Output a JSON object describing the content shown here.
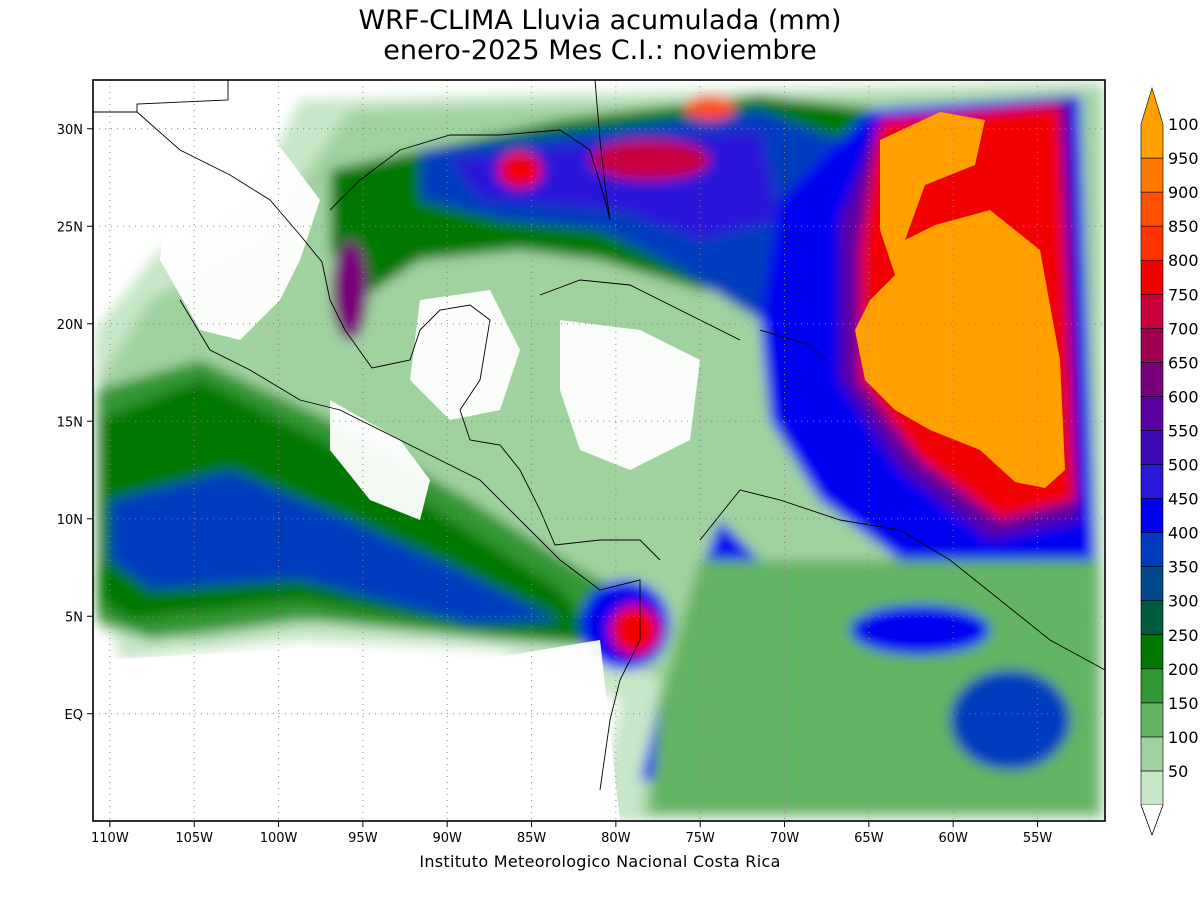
{
  "title_line1": "WRF-CLIMA Lluvia acumulada (mm)",
  "title_line2": "enero-2025 Mes C.I.: noviembre",
  "credit": "Instituto Meteorologico Nacional Costa Rica",
  "map": {
    "lon_range": [
      -111,
      -51
    ],
    "lat_range": [
      -5.5,
      32.5
    ],
    "lon_ticks": [
      {
        "lon": -110,
        "label": "110W"
      },
      {
        "lon": -105,
        "label": "105W"
      },
      {
        "lon": -100,
        "label": "100W"
      },
      {
        "lon": -95,
        "label": "95W"
      },
      {
        "lon": -90,
        "label": "90W"
      },
      {
        "lon": -85,
        "label": "85W"
      },
      {
        "lon": -80,
        "label": "80W"
      },
      {
        "lon": -75,
        "label": "75W"
      },
      {
        "lon": -70,
        "label": "70W"
      },
      {
        "lon": -65,
        "label": "65W"
      },
      {
        "lon": -60,
        "label": "60W"
      },
      {
        "lon": -55,
        "label": "55W"
      }
    ],
    "lat_ticks": [
      {
        "lat": 30,
        "label": "30N"
      },
      {
        "lat": 25,
        "label": "25N"
      },
      {
        "lat": 20,
        "label": "20N"
      },
      {
        "lat": 15,
        "label": "15N"
      },
      {
        "lat": 10,
        "label": "10N"
      },
      {
        "lat": 5,
        "label": "5N"
      },
      {
        "lat": 0,
        "label": "EQ"
      }
    ]
  },
  "colorbar": {
    "levels": [
      {
        "label": "50",
        "color": "#c8e6c8"
      },
      {
        "label": "100",
        "color": "#a0d2a0"
      },
      {
        "label": "150",
        "color": "#64b464"
      },
      {
        "label": "200",
        "color": "#329632"
      },
      {
        "label": "250",
        "color": "#007800"
      },
      {
        "label": "300",
        "color": "#005a3c"
      },
      {
        "label": "350",
        "color": "#004a8c"
      },
      {
        "label": "400",
        "color": "#003cbe"
      },
      {
        "label": "450",
        "color": "#0000f0"
      },
      {
        "label": "500",
        "color": "#2a18d8"
      },
      {
        "label": "550",
        "color": "#3c0ab4"
      },
      {
        "label": "600",
        "color": "#5a00a0"
      },
      {
        "label": "650",
        "color": "#780078"
      },
      {
        "label": "700",
        "color": "#a00050"
      },
      {
        "label": "750",
        "color": "#c8003c"
      },
      {
        "label": "800",
        "color": "#f00000"
      },
      {
        "label": "850",
        "color": "#ff3200"
      },
      {
        "label": "900",
        "color": "#ff5000"
      },
      {
        "label": "950",
        "color": "#ff7800"
      },
      {
        "label": "100",
        "color": "#ffa000"
      }
    ]
  }
}
